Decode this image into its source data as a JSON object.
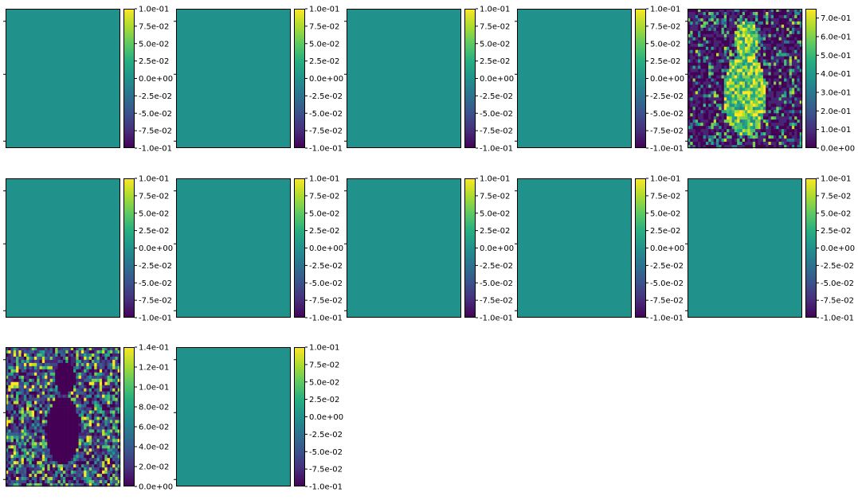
{
  "figure": {
    "colormap": "viridis",
    "uniform_fill": "#21918c",
    "axes_tick_labels_shown": false
  },
  "chart_data": [
    {
      "type": "heatmap",
      "image": "uniform",
      "colorbar_ticks": [
        "1.0e-01",
        "7.5e-02",
        "5.0e-02",
        "2.5e-02",
        "0.0e+00",
        "-2.5e-02",
        "-5.0e-02",
        "-7.5e-02",
        "-1.0e-01"
      ],
      "vmin": -0.1,
      "vmax": 0.1
    },
    {
      "type": "heatmap",
      "image": "uniform",
      "colorbar_ticks": [
        "1.0e-01",
        "7.5e-02",
        "5.0e-02",
        "2.5e-02",
        "0.0e+00",
        "-2.5e-02",
        "-5.0e-02",
        "-7.5e-02",
        "-1.0e-01"
      ],
      "vmin": -0.1,
      "vmax": 0.1
    },
    {
      "type": "heatmap",
      "image": "uniform",
      "colorbar_ticks": [
        "1.0e-01",
        "7.5e-02",
        "5.0e-02",
        "2.5e-02",
        "0.0e+00",
        "-2.5e-02",
        "-5.0e-02",
        "-7.5e-02",
        "-1.0e-01"
      ],
      "vmin": -0.1,
      "vmax": 0.1
    },
    {
      "type": "heatmap",
      "image": "uniform",
      "colorbar_ticks": [
        "1.0e-01",
        "7.5e-02",
        "5.0e-02",
        "2.5e-02",
        "0.0e+00",
        "-2.5e-02",
        "-5.0e-02",
        "-7.5e-02",
        "-1.0e-01"
      ],
      "vmin": -0.1,
      "vmax": 0.1
    },
    {
      "type": "heatmap",
      "image": "dog-activation-bright",
      "colorbar_ticks": [
        "7.0e-01",
        "6.0e-01",
        "5.0e-01",
        "4.0e-01",
        "3.0e-01",
        "2.0e-01",
        "1.0e-01",
        "0.0e+00"
      ],
      "vmin": 0.0,
      "vmax": 0.75
    },
    {
      "type": "heatmap",
      "image": "uniform",
      "colorbar_ticks": [
        "1.0e-01",
        "7.5e-02",
        "5.0e-02",
        "2.5e-02",
        "0.0e+00",
        "-2.5e-02",
        "-5.0e-02",
        "-7.5e-02",
        "-1.0e-01"
      ],
      "vmin": -0.1,
      "vmax": 0.1
    },
    {
      "type": "heatmap",
      "image": "uniform",
      "colorbar_ticks": [
        "1.0e-01",
        "7.5e-02",
        "5.0e-02",
        "2.5e-02",
        "0.0e+00",
        "-2.5e-02",
        "-5.0e-02",
        "-7.5e-02",
        "-1.0e-01"
      ],
      "vmin": -0.1,
      "vmax": 0.1
    },
    {
      "type": "heatmap",
      "image": "uniform",
      "colorbar_ticks": [
        "1.0e-01",
        "7.5e-02",
        "5.0e-02",
        "2.5e-02",
        "0.0e+00",
        "-2.5e-02",
        "-5.0e-02",
        "-7.5e-02",
        "-1.0e-01"
      ],
      "vmin": -0.1,
      "vmax": 0.1
    },
    {
      "type": "heatmap",
      "image": "uniform",
      "colorbar_ticks": [
        "1.0e-01",
        "7.5e-02",
        "5.0e-02",
        "2.5e-02",
        "0.0e+00",
        "-2.5e-02",
        "-5.0e-02",
        "-7.5e-02",
        "-1.0e-01"
      ],
      "vmin": -0.1,
      "vmax": 0.1
    },
    {
      "type": "heatmap",
      "image": "uniform",
      "colorbar_ticks": [
        "1.0e-01",
        "7.5e-02",
        "5.0e-02",
        "2.5e-02",
        "0.0e+00",
        "-2.5e-02",
        "-5.0e-02",
        "-7.5e-02",
        "-1.0e-01"
      ],
      "vmin": -0.1,
      "vmax": 0.1
    },
    {
      "type": "heatmap",
      "image": "dog-activation-edges",
      "colorbar_ticks": [
        "1.4e-01",
        "1.2e-01",
        "1.0e-01",
        "8.0e-02",
        "6.0e-02",
        "4.0e-02",
        "2.0e-02",
        "0.0e+00"
      ],
      "vmin": 0.0,
      "vmax": 0.14
    },
    {
      "type": "heatmap",
      "image": "uniform",
      "colorbar_ticks": [
        "1.0e-01",
        "7.5e-02",
        "5.0e-02",
        "2.5e-02",
        "0.0e+00",
        "-2.5e-02",
        "-5.0e-02",
        "-7.5e-02",
        "-1.0e-01"
      ],
      "vmin": -0.1,
      "vmax": 0.1
    }
  ]
}
